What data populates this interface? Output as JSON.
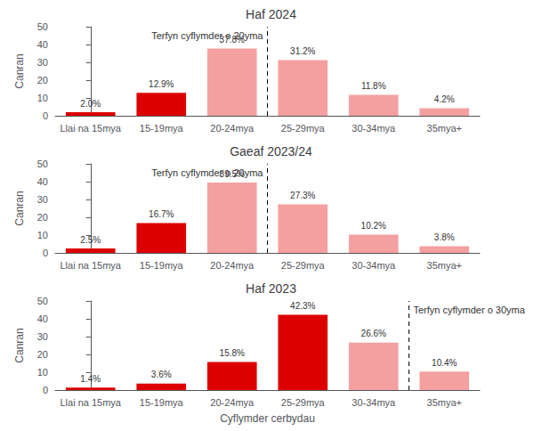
{
  "chart_data": [
    {
      "type": "bar",
      "title": "Haf 2024",
      "categories": [
        "Llai na 15mya",
        "15-19mya",
        "20-24mya",
        "25-29mya",
        "30-34mya",
        "35mya+"
      ],
      "values": [
        2.0,
        12.9,
        37.8,
        31.2,
        11.8,
        4.2
      ],
      "value_labels": [
        "2.0%",
        "12.9%",
        "37.8%",
        "31.2%",
        "11.8%",
        "4.2%"
      ],
      "colors": [
        "#dd0000",
        "#dd0000",
        "#f4a0a0",
        "#f4a0a0",
        "#f4a0a0",
        "#f4a0a0"
      ],
      "data_labels": true,
      "ylabel": "Canran",
      "ylim": [
        0,
        50
      ],
      "yticks": [
        0,
        10,
        20,
        30,
        40,
        50
      ],
      "grid": false,
      "annotations": [
        {
          "text": "Terfyn cyflymder o 20yma",
          "x": 2.5,
          "line_style": "dashed"
        }
      ]
    },
    {
      "type": "bar",
      "title": "Gaeaf 2023/24",
      "categories": [
        "Llai na 15mya",
        "15-19mya",
        "20-24mya",
        "25-29mya",
        "30-34mya",
        "35mya+"
      ],
      "values": [
        2.5,
        16.7,
        39.5,
        27.3,
        10.2,
        3.8
      ],
      "value_labels": [
        "2.5%",
        "16.7%",
        "39.5%",
        "27.3%",
        "10.2%",
        "3.8%"
      ],
      "colors": [
        "#dd0000",
        "#dd0000",
        "#f4a0a0",
        "#f4a0a0",
        "#f4a0a0",
        "#f4a0a0"
      ],
      "data_labels": true,
      "ylabel": "Canran",
      "ylim": [
        0,
        50
      ],
      "yticks": [
        0,
        10,
        20,
        30,
        40,
        50
      ],
      "grid": false,
      "annotations": [
        {
          "text": "Terfyn cyflymder o 20yma",
          "x": 2.5,
          "line_style": "dashed"
        }
      ]
    },
    {
      "type": "bar",
      "title": "Haf 2023",
      "categories": [
        "Llai na 15mya",
        "15-19mya",
        "20-24mya",
        "25-29mya",
        "30-34mya",
        "35mya+"
      ],
      "values": [
        1.4,
        3.6,
        15.8,
        42.3,
        26.6,
        10.4
      ],
      "value_labels": [
        "1.4%",
        "3.6%",
        "15.8%",
        "42.3%",
        "26.6%",
        "10.4%"
      ],
      "colors": [
        "#dd0000",
        "#dd0000",
        "#dd0000",
        "#dd0000",
        "#f4a0a0",
        "#f4a0a0"
      ],
      "data_labels": true,
      "ylabel": "Canran",
      "xlabel": "Cyflymder cerbydau",
      "ylim": [
        0,
        50
      ],
      "yticks": [
        0,
        10,
        20,
        30,
        40,
        50
      ],
      "grid": false,
      "annotations": [
        {
          "text": "Terfyn cyflymder o 30yma",
          "x": 4.5,
          "line_style": "dashed"
        }
      ]
    }
  ]
}
